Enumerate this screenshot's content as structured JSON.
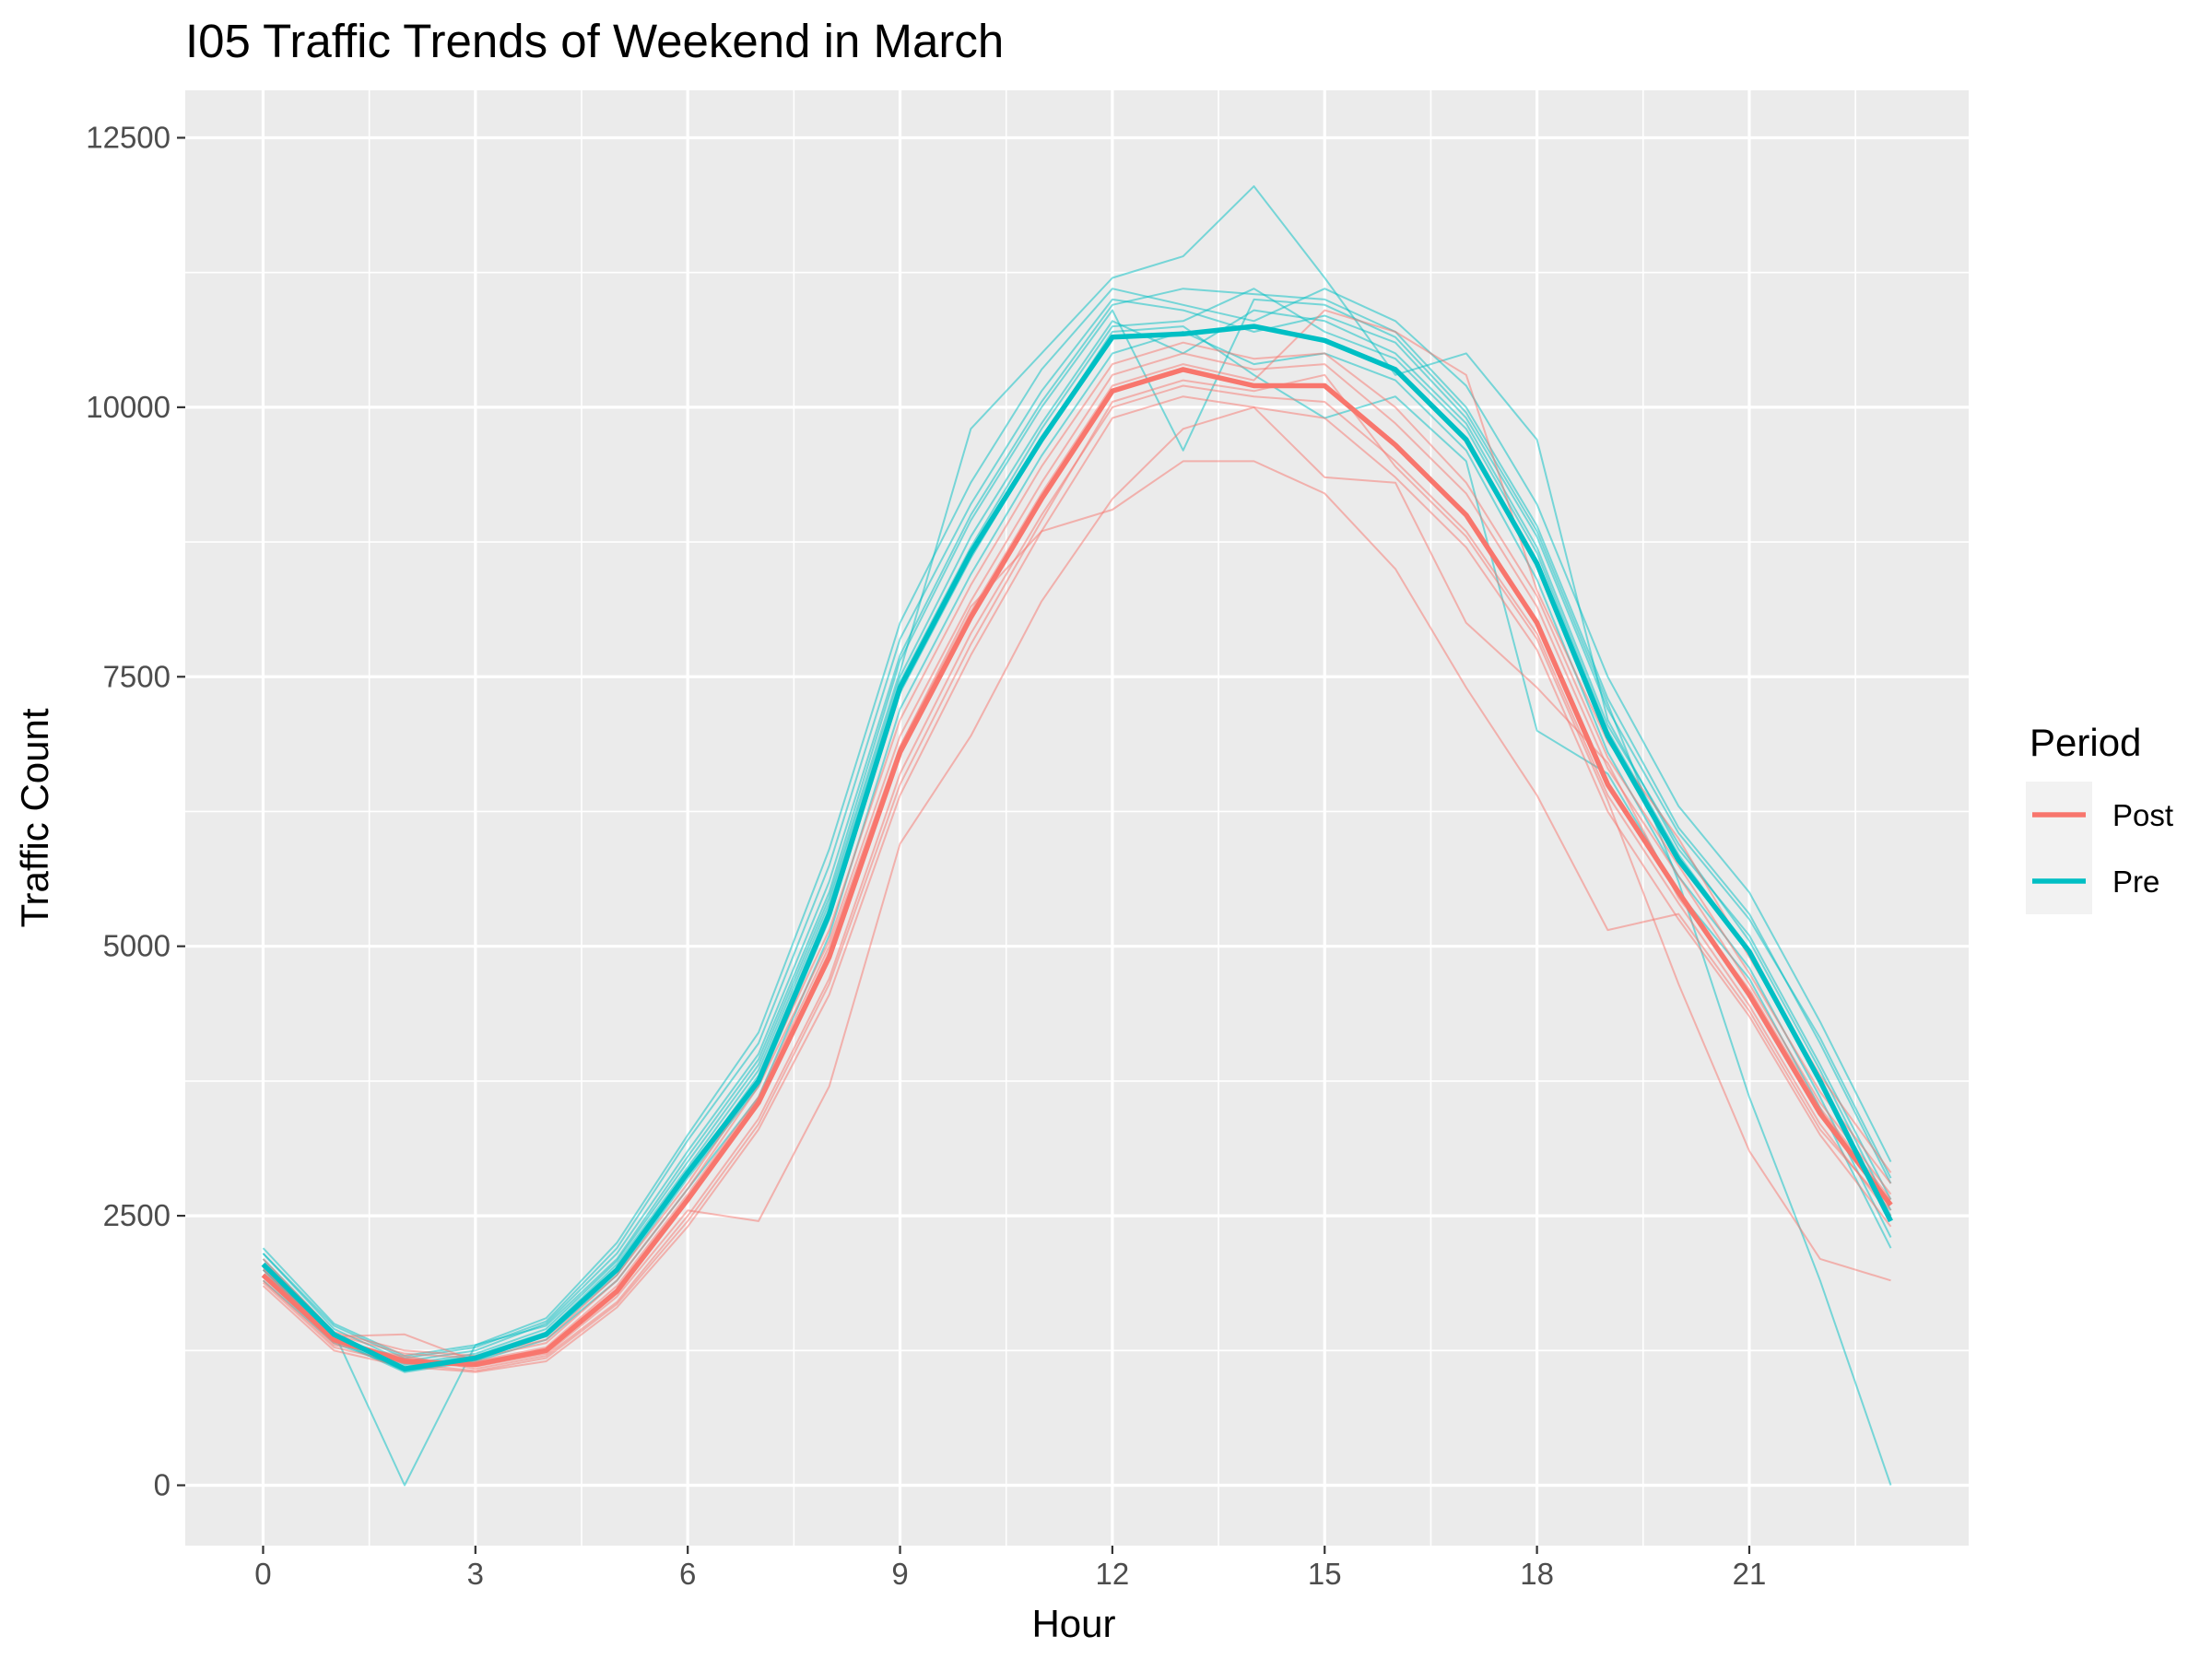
{
  "chart_data": {
    "type": "line",
    "title": "I05 Traffic Trends of Weekend in March",
    "xlabel": "Hour",
    "ylabel": "Traffic Count",
    "xlim": [
      -1.1,
      24.1
    ],
    "ylim": [
      -560,
      12940
    ],
    "x_ticks": [
      0,
      3,
      6,
      9,
      12,
      15,
      18,
      21
    ],
    "x_tick_labels": [
      "0",
      "3",
      "6",
      "9",
      "12",
      "15",
      "18",
      "21"
    ],
    "y_ticks": [
      0,
      2500,
      5000,
      7500,
      10000,
      12500
    ],
    "y_tick_labels": [
      "0",
      "2500",
      "5000",
      "7500",
      "10000",
      "12500"
    ],
    "grid": true,
    "legend": {
      "title": "Period",
      "position": "right",
      "entries": [
        {
          "label": "Post",
          "color": "#F8766D"
        },
        {
          "label": "Pre",
          "color": "#00BFC4"
        }
      ]
    },
    "colors": {
      "Post": "#F8766D",
      "Pre": "#00BFC4",
      "panel": "#EBEBEB",
      "grid": "#FFFFFF"
    },
    "x": [
      0,
      1,
      2,
      3,
      4,
      5,
      6,
      7,
      8,
      9,
      10,
      11,
      12,
      13,
      14,
      15,
      16,
      17,
      18,
      19,
      20,
      21,
      22,
      23
    ],
    "series": [
      {
        "name": "Post",
        "role": "mean",
        "values": [
          1950,
          1350,
          1150,
          1120,
          1250,
          1800,
          2650,
          3550,
          4900,
          6800,
          8050,
          9150,
          10150,
          10350,
          10200,
          10200,
          9650,
          9000,
          8000,
          6500,
          5500,
          4550,
          3450,
          2600
        ]
      },
      {
        "name": "Pre",
        "role": "mean",
        "values": [
          2050,
          1400,
          1080,
          1180,
          1400,
          2000,
          2900,
          3750,
          5300,
          7400,
          8650,
          9700,
          10650,
          10680,
          10750,
          10620,
          10350,
          9700,
          8550,
          6950,
          5800,
          4950,
          3750,
          2450
        ]
      },
      {
        "name": "Pre",
        "role": "day",
        "values": [
          2150,
          1450,
          1150,
          1250,
          1500,
          2150,
          3100,
          4000,
          5600,
          7700,
          9000,
          10050,
          10950,
          11100,
          11050,
          11000,
          10700,
          10000,
          8900,
          7300,
          6100,
          5300,
          4100,
          2800
        ]
      },
      {
        "name": "Pre",
        "role": "day",
        "values": [
          2000,
          1380,
          1100,
          1200,
          1420,
          2050,
          2950,
          3850,
          5400,
          7500,
          8800,
          9850,
          10800,
          10500,
          10900,
          10800,
          10500,
          9850,
          8700,
          7050,
          5950,
          5050,
          3850,
          2550
        ]
      },
      {
        "name": "Pre",
        "role": "day",
        "values": [
          2200,
          1500,
          1200,
          1300,
          1550,
          2250,
          3250,
          4200,
          5900,
          8000,
          9300,
          10350,
          11100,
          10950,
          10800,
          11100,
          10800,
          10200,
          9100,
          7500,
          6300,
          5500,
          4300,
          3000
        ]
      },
      {
        "name": "Pre",
        "role": "day",
        "values": [
          1950,
          1350,
          1050,
          1150,
          1350,
          1900,
          2750,
          3600,
          5100,
          7200,
          8450,
          9550,
          10500,
          10700,
          10400,
          10500,
          10250,
          9600,
          8400,
          6800,
          5650,
          4800,
          3600,
          2300
        ]
      },
      {
        "name": "Pre",
        "role": "day",
        "values": [
          2100,
          1420,
          0,
          1300,
          1480,
          2100,
          3050,
          3950,
          5500,
          7650,
          8950,
          10000,
          10900,
          9600,
          11000,
          10950,
          10650,
          9950,
          8850,
          7250,
          5600,
          3600,
          1900,
          0
        ]
      },
      {
        "name": "Pre",
        "role": "day",
        "values": [
          2050,
          1400,
          1120,
          1220,
          1450,
          2080,
          3000,
          3900,
          5450,
          7550,
          9800,
          10500,
          11200,
          11400,
          12050,
          11200,
          10300,
          10500,
          9700,
          7100,
          5900,
          5100,
          3900,
          2650
        ]
      },
      {
        "name": "Pre",
        "role": "day",
        "values": [
          1900,
          1320,
          1080,
          1180,
          1380,
          1950,
          2850,
          3700,
          5250,
          7350,
          8600,
          9700,
          10700,
          10750,
          10300,
          9900,
          10100,
          9500,
          7000,
          6600,
          5500,
          4700,
          3500,
          2200
        ]
      },
      {
        "name": "Pre",
        "role": "day",
        "values": [
          2150,
          1480,
          1180,
          1280,
          1520,
          2200,
          3200,
          4100,
          5750,
          7850,
          9100,
          10150,
          11000,
          10900,
          10700,
          10850,
          10600,
          9900,
          8800,
          7200,
          6050,
          5250,
          4150,
          2850
        ]
      },
      {
        "name": "Pre",
        "role": "day",
        "values": [
          2000,
          1360,
          1060,
          1160,
          1400,
          1980,
          2900,
          3800,
          5350,
          7450,
          8700,
          9800,
          10750,
          10800,
          11100,
          10700,
          10450,
          9800,
          8650,
          7000,
          5850,
          4950,
          3750,
          2500
        ]
      },
      {
        "name": "Post",
        "role": "day",
        "values": [
          1900,
          1300,
          1200,
          1080,
          1200,
          1700,
          2500,
          3400,
          4700,
          6600,
          7900,
          9000,
          10000,
          10200,
          10100,
          10050,
          9500,
          8850,
          7900,
          6400,
          5400,
          4450,
          3350,
          2500
        ]
      },
      {
        "name": "Post",
        "role": "day",
        "values": [
          2050,
          1400,
          1220,
          1180,
          1320,
          1900,
          2750,
          3700,
          5050,
          6950,
          8200,
          9300,
          10300,
          10500,
          10350,
          10400,
          9850,
          9200,
          8150,
          6650,
          5650,
          4650,
          3550,
          2700
        ]
      },
      {
        "name": "Post",
        "role": "day",
        "values": [
          1850,
          1250,
          1100,
          1050,
          1150,
          1650,
          2400,
          3300,
          4550,
          6400,
          7700,
          8850,
          9900,
          10100,
          10000,
          9900,
          9350,
          8700,
          7750,
          6250,
          5250,
          4350,
          3250,
          2400
        ]
      },
      {
        "name": "Post",
        "role": "day",
        "values": [
          2000,
          1380,
          1400,
          1150,
          1280,
          1850,
          2700,
          3600,
          5000,
          6850,
          8150,
          8850,
          9050,
          9500,
          9500,
          9200,
          8500,
          7400,
          6400,
          5150,
          5300,
          4400,
          3300,
          2550
        ]
      },
      {
        "name": "Post",
        "role": "day",
        "values": [
          1950,
          1320,
          1180,
          1100,
          1220,
          1750,
          2550,
          2450,
          3700,
          5950,
          6950,
          8200,
          9150,
          9800,
          10000,
          9350,
          9300,
          8000,
          7400,
          6700,
          5450,
          4600,
          3500,
          2650
        ]
      },
      {
        "name": "Post",
        "role": "day",
        "values": [
          2100,
          1420,
          1250,
          1200,
          1350,
          1950,
          2800,
          3750,
          5150,
          7100,
          8350,
          9450,
          10400,
          10600,
          10450,
          10500,
          10000,
          9300,
          8250,
          6750,
          5750,
          4750,
          3650,
          2800
        ]
      },
      {
        "name": "Post",
        "role": "day",
        "values": [
          1880,
          1280,
          1130,
          1060,
          1180,
          1680,
          2450,
          3350,
          4650,
          6500,
          7800,
          8950,
          10050,
          10250,
          10150,
          10300,
          9450,
          8800,
          7850,
          6350,
          4650,
          3100,
          2100,
          1900
        ]
      },
      {
        "name": "Post",
        "role": "day",
        "values": [
          2020,
          1370,
          1170,
          1130,
          1260,
          1820,
          2650,
          3550,
          4950,
          6850,
          8100,
          9200,
          10200,
          10400,
          10250,
          10900,
          10700,
          10300,
          8300,
          6900,
          6000,
          4900,
          3800,
          2900
        ]
      }
    ]
  }
}
